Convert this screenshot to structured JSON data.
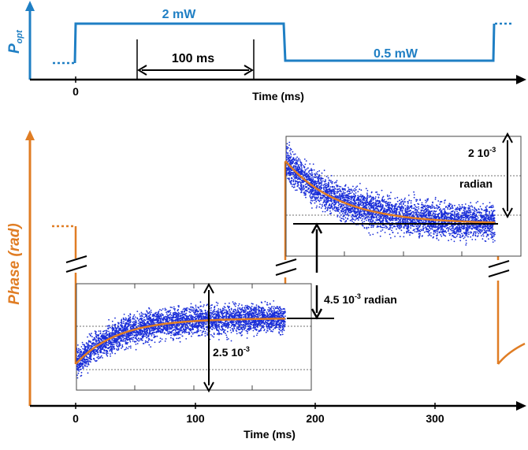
{
  "colors": {
    "optical": "#1f7fc4",
    "phase": "#e07d24",
    "scatter": "#1a2ed8",
    "fit": "#e07d24",
    "ink": "#000000"
  },
  "chart_data": [
    {
      "type": "line",
      "role": "optical power timing",
      "title": "",
      "xlabel": "Time (ms)",
      "ylabel": "P",
      "ylabel_sub": "opt",
      "x_tick_labels": [
        "0"
      ],
      "levels": [
        {
          "label": "2 mW",
          "value_mW": 2,
          "x_start_ms": 0,
          "x_end_ms": 175
        },
        {
          "label": "0.5 mW",
          "value_mW": 0.5,
          "x_start_ms": 175,
          "x_end_ms": 350
        }
      ],
      "annotations": [
        "100 ms"
      ]
    },
    {
      "type": "line",
      "role": "phase response",
      "title": "",
      "xlabel": "Time (ms)",
      "ylabel": "Phase (rad)",
      "xlim": [
        -55,
        375
      ],
      "x_ticks": [
        0,
        100,
        200,
        300
      ],
      "x_tick_labels": [
        "0",
        "100",
        "200",
        "300"
      ],
      "series": [
        {
          "segment": "2 mW on",
          "start_ms": 0,
          "end_ms": 175,
          "model": "exponential rise",
          "amplitude_rad": 0.0025,
          "tau_ms": 35
        },
        {
          "segment": "0.5 mW on",
          "start_ms": 175,
          "end_ms": 350,
          "model": "exponential decay",
          "amplitude_rad": 0.002,
          "tau_ms": 45
        }
      ],
      "annotations": [
        "2.5 10-3",
        "2 10-3",
        "radian",
        "4.5 10-3 radian"
      ],
      "step_between_plateaus_rad": 0.0045
    }
  ],
  "labels": {
    "power_high": "2 mW",
    "power_low": "0.5 mW",
    "duration": "100 ms",
    "top_x_zero": "0",
    "top_xlabel": "Time (ms)",
    "popt_main": "P",
    "popt_sub": "opt",
    "phase_ylabel": "Phase (rad)",
    "bottom_xlabel": "Time (ms)",
    "tick_0": "0",
    "tick_100": "100",
    "tick_200": "200",
    "tick_300": "300",
    "amp_left_base": "2.5 10",
    "amp_left_exp": "-3",
    "amp_right_base": "2 10",
    "amp_right_exp": "-3",
    "amp_right_unit": "radian",
    "step_base": "4.5 10",
    "step_exp": "-3",
    "step_unit": " radian"
  }
}
